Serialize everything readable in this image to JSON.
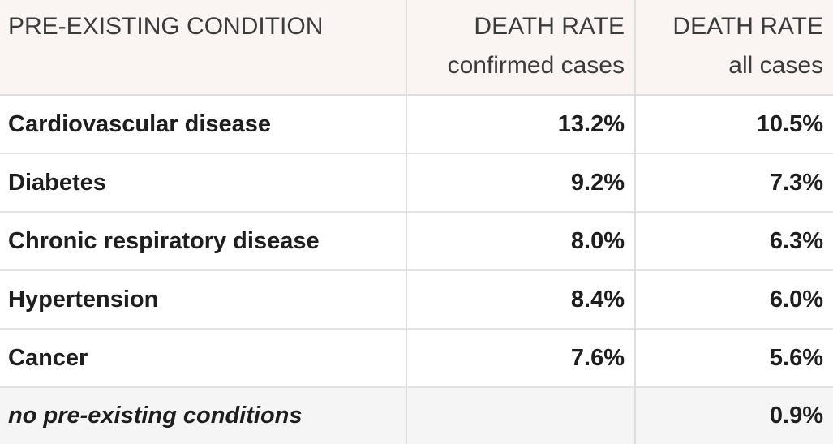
{
  "table": {
    "header": {
      "condition": {
        "label": "PRE-EXISTING CONDITION"
      },
      "confirmed": {
        "label": "DEATH RATE",
        "sublabel": "confirmed cases"
      },
      "all": {
        "label": "DEATH RATE",
        "sublabel": "all cases"
      }
    },
    "rows": [
      {
        "condition": "Cardiovascular disease",
        "confirmed": "13.2%",
        "all": "10.5%"
      },
      {
        "condition": "Diabetes",
        "confirmed": "9.2%",
        "all": "7.3%"
      },
      {
        "condition": "Chronic respiratory disease",
        "confirmed": "8.0%",
        "all": "6.3%"
      },
      {
        "condition": "Hypertension",
        "confirmed": "8.4%",
        "all": "6.0%"
      },
      {
        "condition": "Cancer",
        "confirmed": "7.6%",
        "all": "5.6%"
      },
      {
        "condition": "no pre-existing conditions",
        "confirmed": "",
        "all": "0.9%"
      }
    ]
  },
  "colors": {
    "header_bg": "#faf5f3",
    "row_bg": "#ffffff",
    "shaded_row_bg": "#f5f5f5",
    "border": "#dedede",
    "header_text": "#3b3b3b",
    "row_text": "#1e1e1e"
  },
  "chart_data": {
    "type": "table",
    "columns": [
      "PRE-EXISTING CONDITION",
      "DEATH RATE confirmed cases",
      "DEATH RATE all cases"
    ],
    "rows": [
      [
        "Cardiovascular disease",
        13.2,
        10.5
      ],
      [
        "Diabetes",
        9.2,
        7.3
      ],
      [
        "Chronic respiratory disease",
        8.0,
        6.3
      ],
      [
        "Hypertension",
        8.4,
        6.0
      ],
      [
        "Cancer",
        7.6,
        5.6
      ],
      [
        "no pre-existing conditions",
        null,
        0.9
      ]
    ],
    "units": "%"
  }
}
